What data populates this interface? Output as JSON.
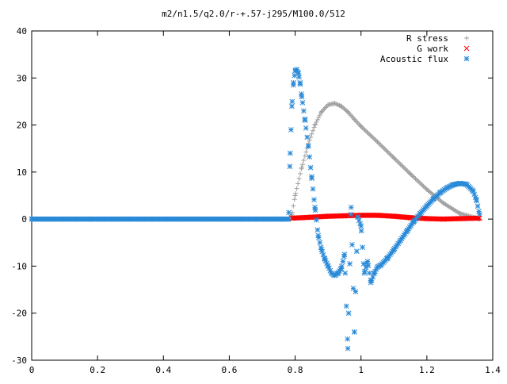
{
  "chart_data": {
    "type": "scatter",
    "title": "m2/n1.5/q2.0/r-+.57-j295/M100.0/512",
    "xlabel": "",
    "ylabel": "",
    "xlim": [
      0,
      1.4
    ],
    "ylim": [
      -30,
      40
    ],
    "x_ticks": [
      "0",
      "0.2",
      "0.4",
      "0.6",
      "0.8",
      "1",
      "1.2",
      "1.4"
    ],
    "y_ticks": [
      "-30",
      "-20",
      "-10",
      "0",
      "10",
      "20",
      "30",
      "40"
    ],
    "grid": false,
    "legend_position": "top-right",
    "series": [
      {
        "name": "R stress",
        "marker": "plus",
        "color": "#a0a0a0",
        "x": [
          0.0,
          0.78,
          0.79,
          0.8,
          0.82,
          0.84,
          0.86,
          0.88,
          0.9,
          0.92,
          0.94,
          0.96,
          0.98,
          1.0,
          1.05,
          1.1,
          1.15,
          1.2,
          1.25,
          1.3,
          1.35,
          1.36
        ],
        "y": [
          0.0,
          0.0,
          1.0,
          5.0,
          11.0,
          16.0,
          20.0,
          22.8,
          24.3,
          24.6,
          24.0,
          22.8,
          21.2,
          19.7,
          16.4,
          13.0,
          9.6,
          6.3,
          3.4,
          1.2,
          0.2,
          0.0
        ]
      },
      {
        "name": "G work",
        "marker": "cross",
        "color": "#ff0000",
        "x": [
          0.79,
          0.85,
          0.9,
          0.95,
          1.0,
          1.05,
          1.1,
          1.15,
          1.2,
          1.25,
          1.3,
          1.36
        ],
        "y": [
          0.2,
          0.4,
          0.6,
          0.7,
          0.8,
          0.8,
          0.6,
          0.3,
          0.1,
          0.0,
          0.1,
          0.2
        ]
      },
      {
        "name": "Acoustic flux",
        "marker": "star",
        "color": "#2a8ad8",
        "x": [
          0.0,
          0.78,
          0.785,
          0.79,
          0.795,
          0.8,
          0.805,
          0.81,
          0.815,
          0.82,
          0.83,
          0.84,
          0.85,
          0.86,
          0.87,
          0.88,
          0.89,
          0.9,
          0.91,
          0.92,
          0.93,
          0.94,
          0.95,
          0.96,
          0.97,
          0.98,
          0.99,
          1.0,
          1.01,
          1.02,
          1.03,
          1.04,
          1.05,
          1.06,
          1.08,
          1.1,
          1.12,
          1.14,
          1.16,
          1.18,
          1.2,
          1.22,
          1.24,
          1.26,
          1.28,
          1.3,
          1.32,
          1.34,
          1.35,
          1.36
        ],
        "y": [
          0.0,
          0.0,
          14.0,
          24.0,
          29.0,
          31.5,
          31.8,
          31.0,
          29.0,
          26.0,
          21.0,
          15.5,
          9.0,
          2.5,
          -3.5,
          -6.5,
          -8.5,
          -10.0,
          -11.5,
          -12.0,
          -11.5,
          -10.5,
          -7.5,
          -27.5,
          2.5,
          -24.0,
          0.5,
          -1.5,
          -11.5,
          -9.0,
          -13.5,
          -11.5,
          -10.2,
          -9.8,
          -8.3,
          -6.5,
          -4.5,
          -2.5,
          -0.5,
          1.2,
          2.8,
          4.3,
          5.6,
          6.6,
          7.3,
          7.6,
          7.4,
          6.0,
          4.2,
          1.0
        ]
      }
    ]
  }
}
